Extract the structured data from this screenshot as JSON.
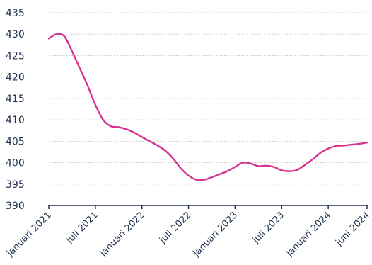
{
  "chart_data": {
    "type": "line",
    "title": "",
    "xlabel": "",
    "ylabel": "",
    "ylim": [
      390,
      435
    ],
    "yticks": [
      390,
      395,
      400,
      405,
      410,
      415,
      420,
      425,
      430,
      435
    ],
    "xlim": [
      "2021-01",
      "2024-06"
    ],
    "xticks": [
      {
        "label": "januari 2021",
        "date": "2021-01"
      },
      {
        "label": "juli 2021",
        "date": "2021-07"
      },
      {
        "label": "januari 2022",
        "date": "2022-01"
      },
      {
        "label": "juli 2022",
        "date": "2022-07"
      },
      {
        "label": "januari 2023",
        "date": "2023-01"
      },
      {
        "label": "juli 2023",
        "date": "2023-07"
      },
      {
        "label": "januari 2024",
        "date": "2024-01"
      },
      {
        "label": "juni 2024",
        "date": "2024-06"
      }
    ],
    "grid": true,
    "legend": "none",
    "colors": {
      "line": "#d6338f",
      "text": "#1f2f4f",
      "grid": "#cfcfcf"
    },
    "series": [
      {
        "x": [
          "2021-01",
          "2021-02",
          "2021-03",
          "2021-04",
          "2021-05",
          "2021-06",
          "2021-07",
          "2021-08",
          "2021-09",
          "2021-10",
          "2021-11",
          "2021-12",
          "2022-01",
          "2022-02",
          "2022-03",
          "2022-04",
          "2022-05",
          "2022-06",
          "2022-07",
          "2022-08",
          "2022-09",
          "2022-10",
          "2022-11",
          "2022-12",
          "2023-01",
          "2023-02",
          "2023-03",
          "2023-04",
          "2023-05",
          "2023-06",
          "2023-07",
          "2023-08",
          "2023-09",
          "2023-10",
          "2023-11",
          "2023-12",
          "2024-01",
          "2024-02",
          "2024-03",
          "2024-04",
          "2024-05",
          "2024-06"
        ],
        "y": [
          429,
          430,
          429.5,
          426,
          422,
          418,
          413.5,
          410,
          408.5,
          408.3,
          407.8,
          407,
          406,
          405,
          404,
          402.8,
          401,
          398.7,
          397,
          396,
          396,
          396.6,
          397.3,
          398,
          399,
          400,
          399.8,
          399.2,
          399.3,
          399.0,
          398.2,
          398,
          398.3,
          399.5,
          400.8,
          402.3,
          403.3,
          403.9,
          404.0,
          404.2,
          404.4,
          404.7
        ]
      }
    ]
  }
}
